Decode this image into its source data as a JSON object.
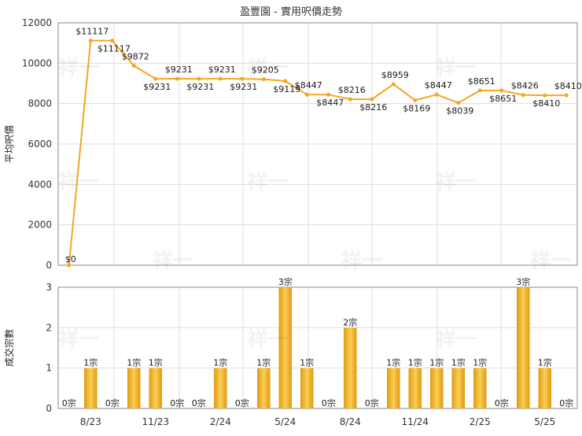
{
  "chart_data": [
    {
      "type": "line",
      "title": "盈豐園 - 實用呎價走勢",
      "ylabel": "平均呎價",
      "ylim": [
        0,
        12000
      ],
      "yticks": [
        "0",
        "2000",
        "4000",
        "6000",
        "8000",
        "10000",
        "12000"
      ],
      "grid": true,
      "watermark": "祥一",
      "color": "#f5a623",
      "series": [
        {
          "values": [
            0,
            11117,
            11117,
            9872,
            9231,
            9231,
            9231,
            9231,
            9231,
            9205,
            9119,
            8447,
            8447,
            8216,
            8216,
            8959,
            8169,
            8447,
            8039,
            8651,
            8651,
            8426,
            8410,
            8410
          ],
          "labels": [
            "$0",
            "$11117",
            "$11117",
            "$9872",
            "$9231",
            "$9231",
            "$9231",
            "$9231",
            "$9231",
            "$9205",
            "$9119",
            "$8447",
            "$8447",
            "$8216",
            "$8216",
            "$8959",
            "$8169",
            "$8447",
            "$8039",
            "$8651",
            "$8651",
            "$8426",
            "$8410",
            "$8410"
          ]
        }
      ]
    },
    {
      "type": "bar",
      "ylabel": "成交宗數",
      "ylim": [
        0,
        3
      ],
      "yticks": [
        "0",
        "1",
        "2",
        "3"
      ],
      "grid": true,
      "color": "#f0b428",
      "categories": [
        "",
        "8/23",
        "",
        "",
        "11/23",
        "",
        "",
        "2/24",
        "",
        "",
        "5/24",
        "",
        "",
        "8/24",
        "",
        "",
        "11/24",
        "",
        "",
        "2/25",
        "",
        "",
        "5/25",
        ""
      ],
      "x_tick_labels": [
        "8/23",
        "11/23",
        "2/24",
        "5/24",
        "8/24",
        "11/24",
        "2/25",
        "5/25"
      ],
      "series": [
        {
          "values": [
            0,
            1,
            0,
            1,
            1,
            0,
            0,
            1,
            0,
            1,
            3,
            1,
            0,
            2,
            0,
            1,
            1,
            1,
            1,
            1,
            0,
            3,
            1,
            0
          ],
          "labels": [
            "0宗",
            "1宗",
            "0宗",
            "1宗",
            "1宗",
            "0宗",
            "0宗",
            "1宗",
            "0宗",
            "1宗",
            "3宗",
            "1宗",
            "0宗",
            "2宗",
            "0宗",
            "1宗",
            "1宗",
            "1宗",
            "1宗",
            "1宗",
            "0宗",
            "3宗",
            "1宗",
            "0宗"
          ]
        }
      ]
    }
  ]
}
